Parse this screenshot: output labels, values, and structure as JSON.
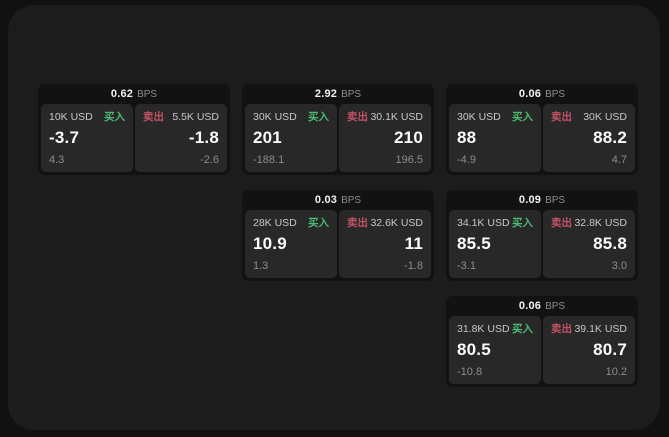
{
  "labels": {
    "bps_unit": "BPS",
    "buy": "买入",
    "sell": "卖出"
  },
  "colors": {
    "buy": "#4bba72",
    "sell": "#c25266",
    "panel_bg": "#1c1c1c",
    "card_bg": "#121212",
    "tile_bg": "#282828"
  },
  "cards": [
    {
      "row": 1,
      "col": 1,
      "bps": "0.62",
      "buy": {
        "size": "10K USD",
        "price": "-3.7",
        "delta": "4.3"
      },
      "sell": {
        "size": "5.5K USD",
        "price": "-1.8",
        "delta": "-2.6"
      }
    },
    {
      "row": 1,
      "col": 2,
      "bps": "2.92",
      "buy": {
        "size": "30K USD",
        "price": "201",
        "delta": "-188.1"
      },
      "sell": {
        "size": "30.1K USD",
        "price": "210",
        "delta": "196.5"
      }
    },
    {
      "row": 1,
      "col": 3,
      "bps": "0.06",
      "buy": {
        "size": "30K USD",
        "price": "88",
        "delta": "-4.9"
      },
      "sell": {
        "size": "30K USD",
        "price": "88.2",
        "delta": "4.7"
      }
    },
    {
      "row": 2,
      "col": 2,
      "bps": "0.03",
      "buy": {
        "size": "28K USD",
        "price": "10.9",
        "delta": "1.3"
      },
      "sell": {
        "size": "32.6K USD",
        "price": "11",
        "delta": "-1.8"
      }
    },
    {
      "row": 2,
      "col": 3,
      "bps": "0.09",
      "buy": {
        "size": "34.1K USD",
        "price": "85.5",
        "delta": "-3.1"
      },
      "sell": {
        "size": "32.8K USD",
        "price": "85.8",
        "delta": "3.0"
      }
    },
    {
      "row": 3,
      "col": 3,
      "bps": "0.06",
      "buy": {
        "size": "31.8K USD",
        "price": "80.5",
        "delta": "-10.8"
      },
      "sell": {
        "size": "39.1K USD",
        "price": "80.7",
        "delta": "10.2"
      }
    }
  ]
}
